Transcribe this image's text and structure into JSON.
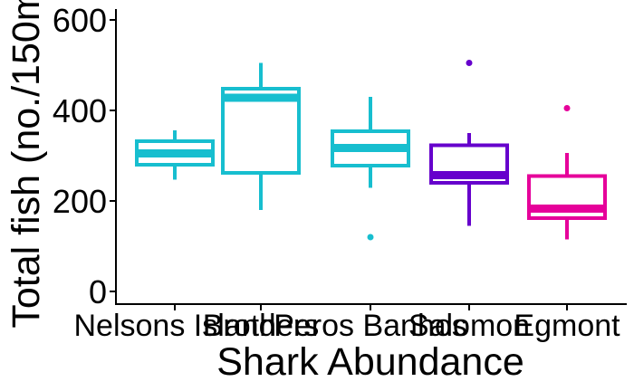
{
  "chart_data": {
    "type": "boxplot",
    "xlabel": "Shark Abundance",
    "ylabel": "Total fish (no./150m",
    "ylim": [
      -30,
      625
    ],
    "yticks": [
      0,
      200,
      400,
      600
    ],
    "grid": false,
    "legend": "none",
    "categories": [
      "Nelsons Island",
      "Brothers",
      "Peros Banhos",
      "Salomon",
      "Egmont"
    ],
    "boxes": [
      {
        "category": "Nelsons Island",
        "color": "#17BECF",
        "min": 247,
        "q1": 280,
        "median": 305,
        "q3": 332,
        "max": 356,
        "outliers": []
      },
      {
        "category": "Brothers",
        "color": "#17BECF",
        "min": 180,
        "q1": 262,
        "median": 428,
        "q3": 448,
        "max": 505,
        "outliers": []
      },
      {
        "category": "Peros Banhos",
        "color": "#17BECF",
        "min": 229,
        "q1": 278,
        "median": 317,
        "q3": 354,
        "max": 430,
        "outliers": [
          120
        ]
      },
      {
        "category": "Salomon",
        "color": "#6600CC",
        "min": 145,
        "q1": 240,
        "median": 257,
        "q3": 323,
        "max": 350,
        "outliers": [
          505
        ]
      },
      {
        "category": "Egmont",
        "color": "#E6009A",
        "min": 115,
        "q1": 162,
        "median": 183,
        "q3": 255,
        "max": 306,
        "outliers": [
          405
        ]
      }
    ]
  }
}
